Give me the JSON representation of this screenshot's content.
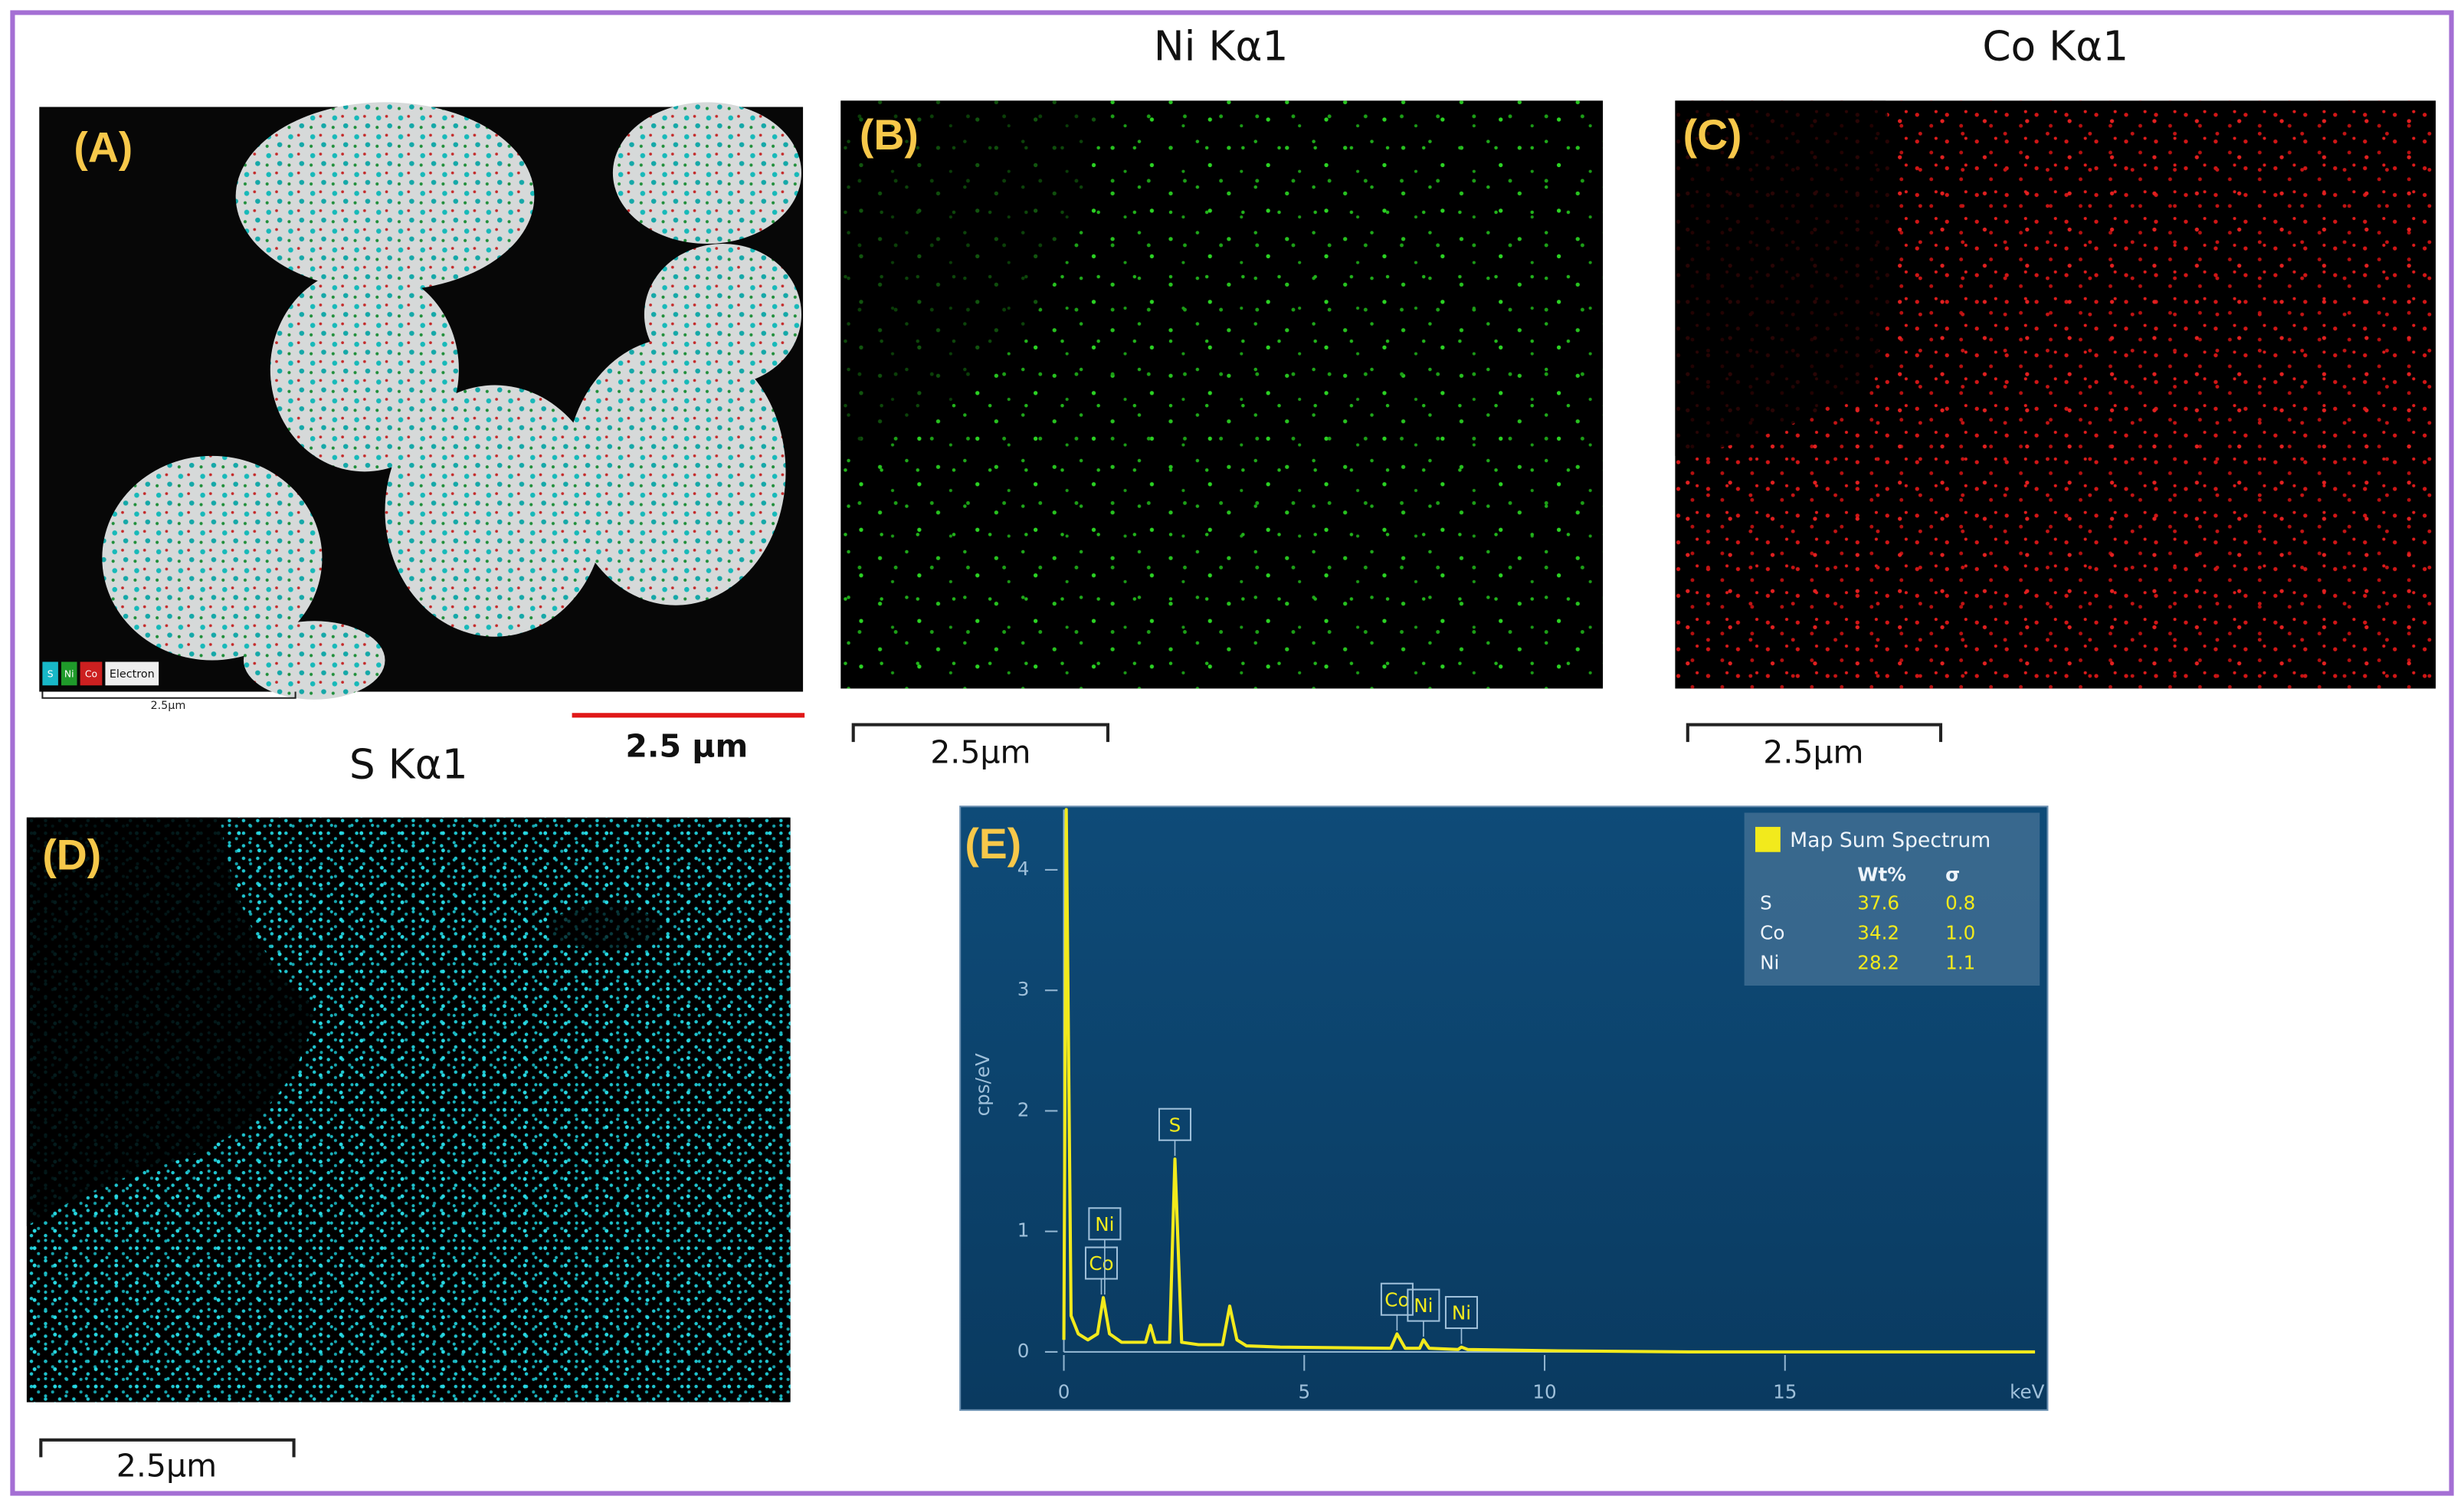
{
  "panels": [
    {
      "label": "(A)",
      "legend": [
        "S",
        "Ni",
        "Co",
        "Electron"
      ],
      "scale_inner": "2.5µm",
      "scale": "2.5 µm"
    },
    {
      "label": "(B)",
      "title": "Ni Kα1",
      "scale": "2.5µm"
    },
    {
      "label": "(C)",
      "title": "Co Kα1",
      "scale": "2.5µm"
    },
    {
      "label": "(D)",
      "title": "S Kα1",
      "scale": "2.5µm"
    }
  ],
  "chart_data": {
    "type": "line",
    "label": "(E)",
    "color": "#f2ea1c",
    "x": [
      0,
      0.05,
      0.15,
      0.3,
      0.5,
      0.7,
      0.82,
      0.95,
      1.2,
      1.7,
      1.8,
      1.9,
      2.2,
      2.31,
      2.45,
      2.8,
      3.3,
      3.45,
      3.6,
      3.8,
      4.5,
      6.8,
      6.93,
      7.1,
      7.4,
      7.48,
      7.6,
      8.2,
      8.27,
      8.4,
      10,
      13,
      20.2
    ],
    "values": [
      0.1,
      4.5,
      0.3,
      0.15,
      0.1,
      0.15,
      0.45,
      0.15,
      0.08,
      0.08,
      0.22,
      0.08,
      0.08,
      1.6,
      0.08,
      0.06,
      0.06,
      0.38,
      0.1,
      0.05,
      0.04,
      0.03,
      0.15,
      0.03,
      0.03,
      0.1,
      0.03,
      0.02,
      0.04,
      0.02,
      0.01,
      0,
      0
    ],
    "xlim": [
      0,
      20.2
    ],
    "xticks": [
      0,
      5,
      10,
      15
    ],
    "x_label": "keV",
    "ylim": [
      0,
      4.5
    ],
    "yticks": [
      0,
      1,
      2,
      3,
      4
    ],
    "y_label": "cps/eV",
    "annotations": [
      {
        "text": "Co",
        "x": 0.78
      },
      {
        "text": "Ni",
        "x": 0.85
      },
      {
        "text": "S",
        "x": 2.31
      },
      {
        "text": "Co",
        "x": 6.93
      },
      {
        "text": "Ni",
        "x": 7.48
      },
      {
        "text": "Ni",
        "x": 8.27
      }
    ],
    "legend_table": {
      "title": "Map Sum Spectrum",
      "columns": [
        "Wt%",
        "σ"
      ],
      "rows": [
        [
          "S",
          "37.6",
          "0.8"
        ],
        [
          "Co",
          "34.2",
          "1.0"
        ],
        [
          "Ni",
          "28.2",
          "1.1"
        ]
      ]
    }
  }
}
